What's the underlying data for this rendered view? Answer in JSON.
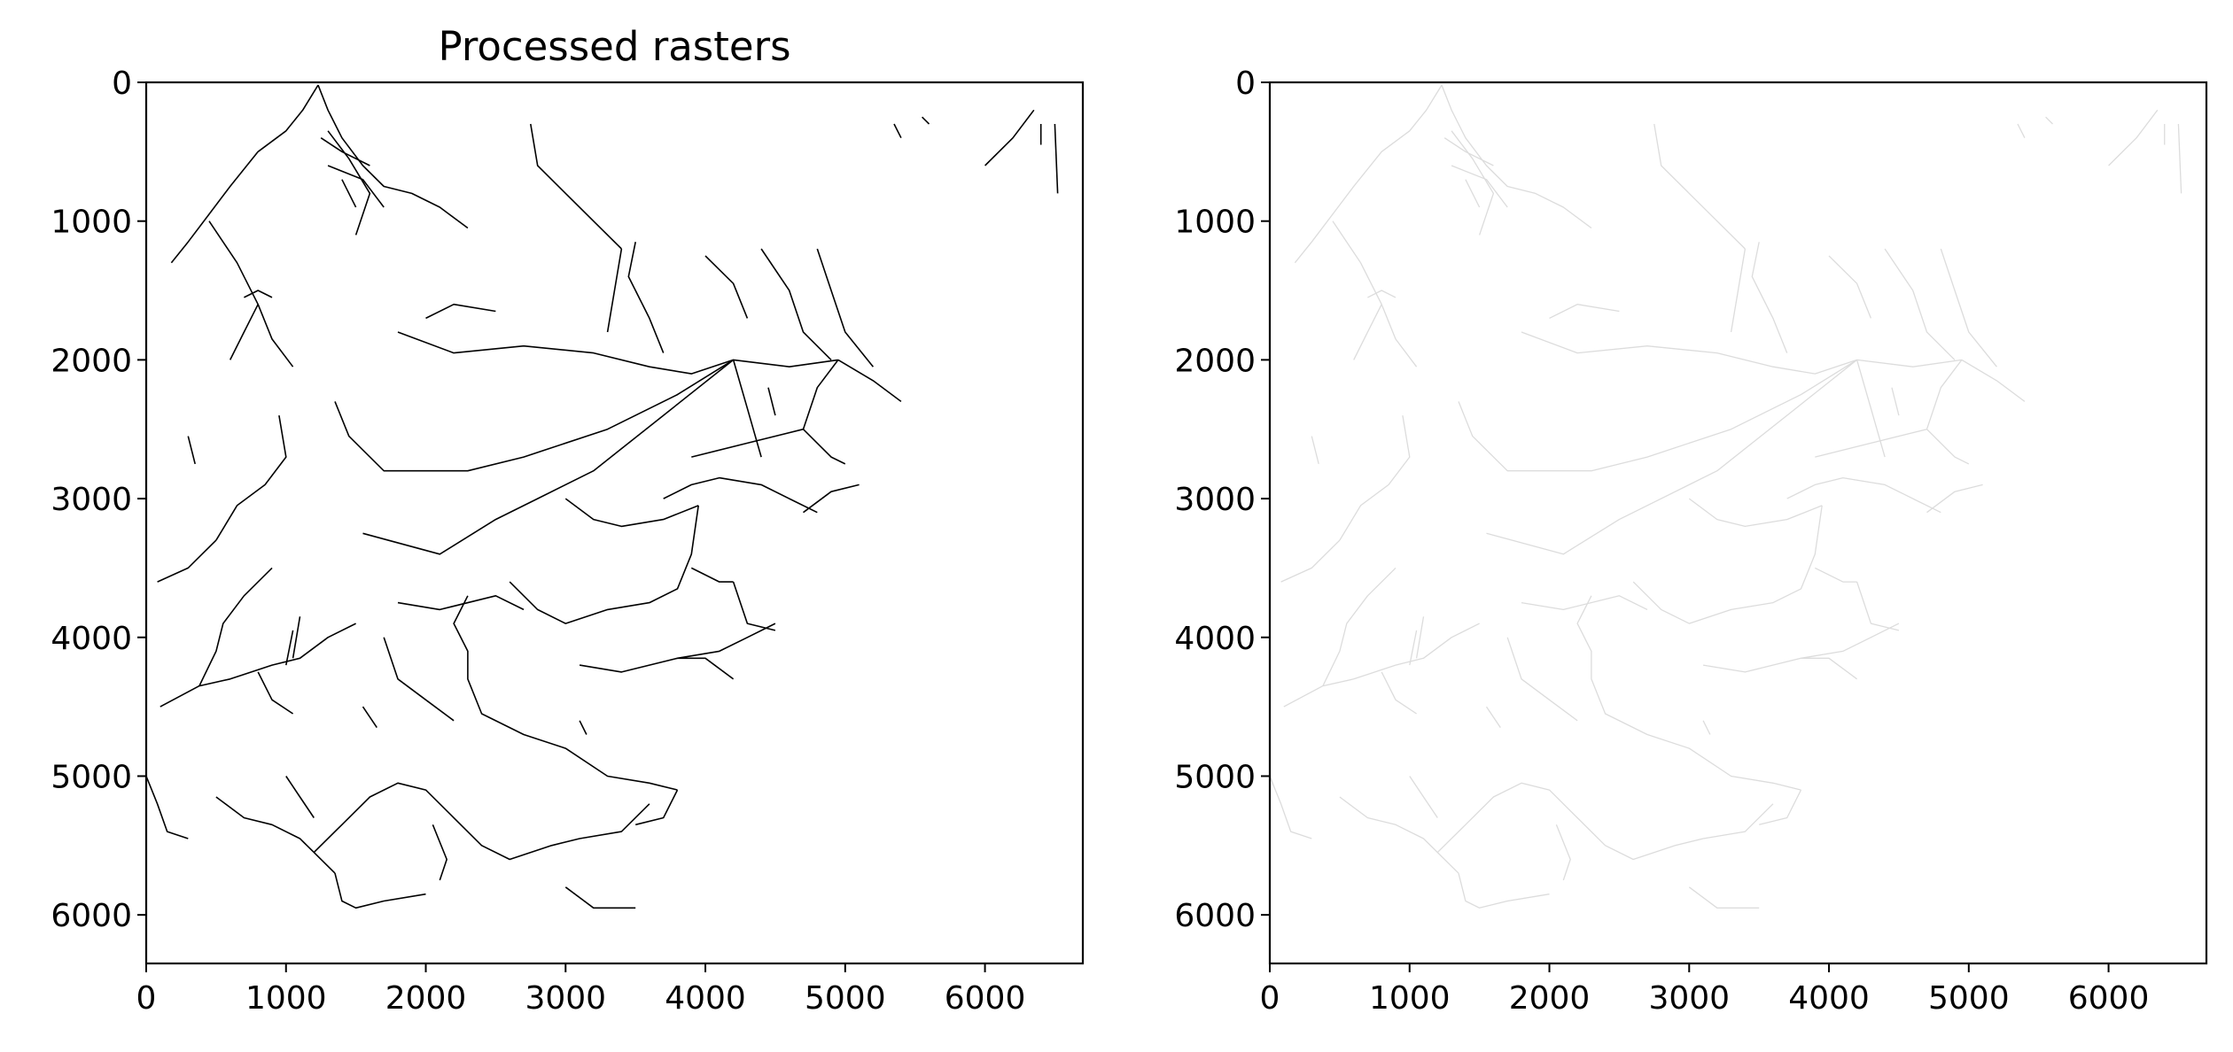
{
  "chart_data": [
    {
      "type": "heatmap",
      "title": "Processed rasters",
      "xlabel": "",
      "ylabel": "",
      "xlim": [
        0,
        6700
      ],
      "ylim": [
        6350,
        0
      ],
      "x_ticks": [
        0,
        1000,
        2000,
        3000,
        4000,
        5000,
        6000
      ],
      "y_ticks": [
        0,
        1000,
        2000,
        3000,
        4000,
        5000,
        6000
      ],
      "grid": false,
      "content": "binary raster of black drainage/stream lines on white background",
      "line_color": "#000000",
      "background_color": "#ffffff"
    },
    {
      "type": "heatmap",
      "title": "",
      "xlabel": "",
      "ylabel": "",
      "xlim": [
        0,
        6700
      ],
      "ylim": [
        6350,
        0
      ],
      "x_ticks": [
        0,
        1000,
        2000,
        3000,
        4000,
        5000,
        6000
      ],
      "y_ticks": [
        0,
        1000,
        2000,
        3000,
        4000,
        5000,
        6000
      ],
      "grid": false,
      "content": "same drainage network rendered in very faint gray",
      "line_color": "#dcdcdc",
      "background_color": "#ffffff"
    }
  ]
}
